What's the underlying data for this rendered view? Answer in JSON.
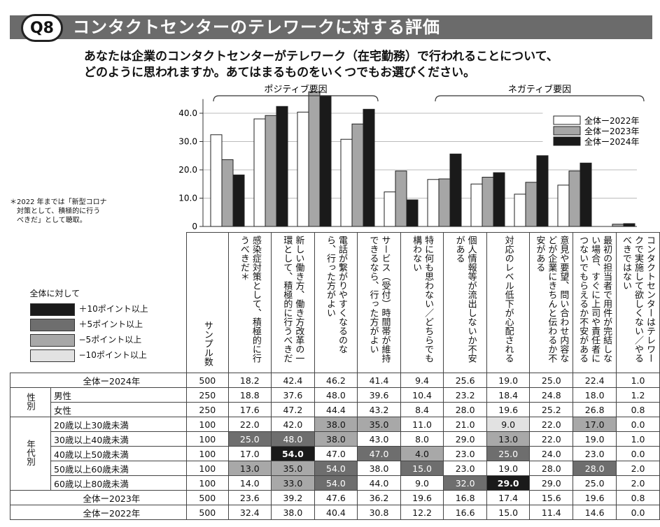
{
  "header": {
    "badge": "Q8",
    "title": "コンタクトセンターのテレワークに対する評価",
    "question_line1": "あなたは企業のコンタクトセンターがテレワーク（在宅勤務）で行われることについて、",
    "question_line2": "どのように思われますか。あてはまるものをいくつでもお選びください。"
  },
  "note": {
    "line1": "＊2022 年までは「新型コロナ",
    "line2": "　対策として、積極的に行う",
    "line3": "　べきだ」として聴取。"
  },
  "groups": {
    "positive": "ポジティブ要因",
    "negative": "ネガティブ要因"
  },
  "chart_data": {
    "type": "bar",
    "title": "",
    "xlabel": "",
    "ylabel": "",
    "ylim": [
      0,
      50
    ],
    "yticks": [
      "0",
      "10.0",
      "20.0",
      "30.0",
      "40.0"
    ],
    "categories": [
      "感染症対策として、積極的に行うべきだ＊",
      "新しい働き方、働き方改革の一環として、積極的に行うべきだ",
      "電話が繋がりやすくなるのなら、行った方がよい",
      "サービス（受付）時間帯が維持できるなら、行った方がよい",
      "特に何も思わない／どちらでも構わない",
      "個人情報等が流出しないか不安がある",
      "対応のレベル低下が心配される",
      "意見や要望、問い合わせ内容などが企業にきちんと伝わるか不安がある",
      "最初の担当者で用件が完結しない場合、すぐに上司や責任者につないでもらえるか不安がある",
      "コンタクトセンターはテレワークで実施して欲しくない／やるべきではない"
    ],
    "series": [
      {
        "name": "全体ー2022年",
        "color": "#ffffff",
        "values": [
          32.4,
          38.0,
          40.4,
          30.8,
          12.2,
          16.6,
          15.0,
          11.4,
          14.6,
          0.0
        ]
      },
      {
        "name": "全体ー2023年",
        "color": "#a6a6a6",
        "values": [
          23.6,
          39.2,
          47.6,
          36.2,
          19.6,
          16.8,
          17.4,
          15.6,
          19.6,
          0.8
        ]
      },
      {
        "name": "全体ー2024年",
        "color": "#1a1a1a",
        "values": [
          18.2,
          42.4,
          46.2,
          41.4,
          9.4,
          25.6,
          19.0,
          25.0,
          22.4,
          1.0
        ]
      }
    ]
  },
  "table": {
    "sample_header": "サンプル数",
    "legend_title": "全体に対して",
    "legend": [
      {
        "label": "＋10ポイント以上",
        "color": "#1a1a1a"
      },
      {
        "label": "＋5ポイント以上",
        "color": "#6e6e6e"
      },
      {
        "label": "−5ポイント以上",
        "color": "#a8a8a8"
      },
      {
        "label": "−10ポイント以上",
        "color": "#e2e2e2"
      }
    ],
    "rows": [
      {
        "group": "",
        "label": "全体ー2024年",
        "n": "500",
        "values": [
          "18.2",
          "42.4",
          "46.2",
          "41.4",
          "9.4",
          "25.6",
          "19.0",
          "25.0",
          "22.4",
          "1.0"
        ],
        "shade": [
          "",
          "",
          "",
          "",
          "",
          "",
          "",
          "",
          "",
          ""
        ]
      },
      {
        "group": "性別",
        "label": "男性",
        "n": "250",
        "values": [
          "18.8",
          "37.6",
          "48.0",
          "39.6",
          "10.4",
          "23.2",
          "18.4",
          "24.8",
          "18.0",
          "1.2"
        ],
        "shade": [
          "",
          "",
          "",
          "",
          "",
          "",
          "",
          "",
          "",
          ""
        ]
      },
      {
        "group": "",
        "label": "女性",
        "n": "250",
        "values": [
          "17.6",
          "47.2",
          "44.4",
          "43.2",
          "8.4",
          "28.0",
          "19.6",
          "25.2",
          "26.8",
          "0.8"
        ],
        "shade": [
          "",
          "",
          "",
          "",
          "",
          "",
          "",
          "",
          "",
          ""
        ]
      },
      {
        "group": "年代別",
        "label": "20歳以上30歳未満",
        "n": "100",
        "values": [
          "22.0",
          "42.0",
          "38.0",
          "35.0",
          "11.0",
          "21.0",
          "9.0",
          "22.0",
          "17.0",
          "0.0"
        ],
        "shade": [
          "",
          "",
          "l5",
          "l5",
          "",
          "",
          "l10",
          "",
          "l5",
          ""
        ]
      },
      {
        "group": "",
        "label": "30歳以上40歳未満",
        "n": "100",
        "values": [
          "25.0",
          "48.0",
          "38.0",
          "43.0",
          "8.0",
          "29.0",
          "13.0",
          "22.0",
          "19.0",
          "1.0"
        ],
        "shade": [
          "h5",
          "h5",
          "l5",
          "",
          "",
          "",
          "l5",
          "",
          "",
          ""
        ]
      },
      {
        "group": "",
        "label": "40歳以上50歳未満",
        "n": "100",
        "values": [
          "17.0",
          "54.0",
          "47.0",
          "47.0",
          "4.0",
          "23.0",
          "25.0",
          "24.0",
          "23.0",
          "0.0"
        ],
        "shade": [
          "",
          "h10",
          "",
          "h5",
          "l5",
          "",
          "h5",
          "",
          "",
          ""
        ]
      },
      {
        "group": "",
        "label": "50歳以上60歳未満",
        "n": "100",
        "values": [
          "13.0",
          "35.0",
          "54.0",
          "38.0",
          "15.0",
          "23.0",
          "19.0",
          "28.0",
          "28.0",
          "2.0"
        ],
        "shade": [
          "l5",
          "l5",
          "h5",
          "",
          "h5",
          "",
          "",
          "",
          "h5",
          ""
        ]
      },
      {
        "group": "",
        "label": "60歳以上80歳未満",
        "n": "100",
        "values": [
          "14.0",
          "33.0",
          "54.0",
          "44.0",
          "9.0",
          "32.0",
          "29.0",
          "29.0",
          "25.0",
          "2.0"
        ],
        "shade": [
          "",
          "l5",
          "h5",
          "",
          "",
          "h5",
          "h10",
          "",
          "",
          ""
        ]
      },
      {
        "group": "",
        "label": "全体ー2023年",
        "n": "500",
        "values": [
          "23.6",
          "39.2",
          "47.6",
          "36.2",
          "19.6",
          "16.8",
          "17.4",
          "15.6",
          "19.6",
          "0.8"
        ],
        "shade": [
          "",
          "",
          "",
          "",
          "",
          "",
          "",
          "",
          "",
          ""
        ]
      },
      {
        "group": "",
        "label": "全体ー2022年",
        "n": "500",
        "values": [
          "32.4",
          "38.0",
          "40.4",
          "30.8",
          "12.2",
          "16.6",
          "15.0",
          "11.4",
          "14.6",
          "0.0"
        ],
        "shade": [
          "",
          "",
          "",
          "",
          "",
          "",
          "",
          "",
          "",
          ""
        ]
      }
    ]
  }
}
